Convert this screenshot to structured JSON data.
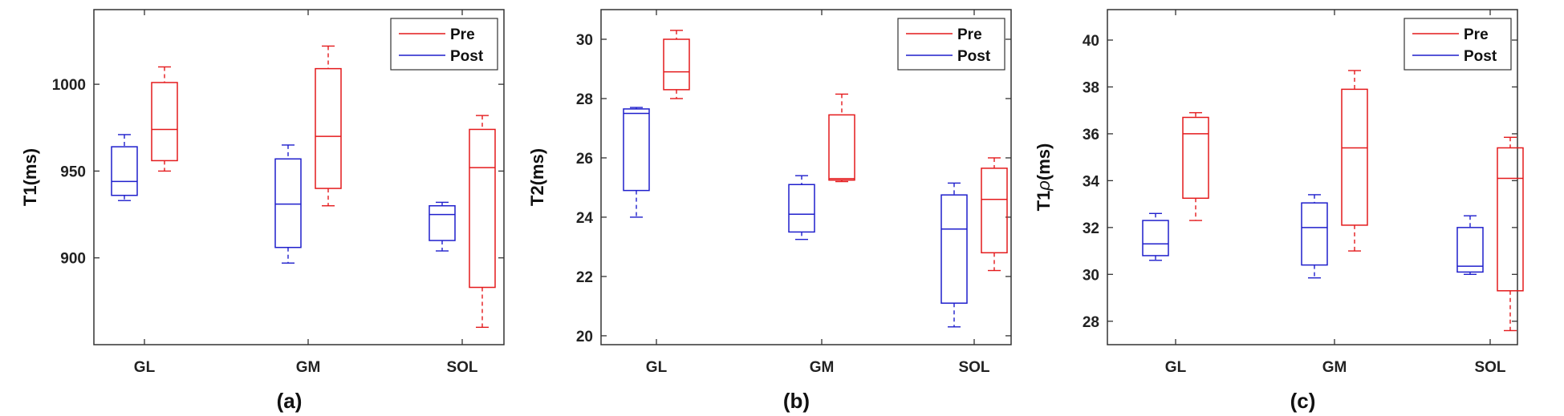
{
  "chart_data": [
    {
      "type": "box",
      "panel_label": "(a)",
      "ylabel": "T1(ms)",
      "categories": [
        "GL",
        "GM",
        "SOL"
      ],
      "ylim": [
        850,
        1043
      ],
      "yticks": [
        900,
        950,
        1000
      ],
      "legend": {
        "position": "top-right",
        "entries": [
          "Pre",
          "Post"
        ]
      },
      "series": [
        {
          "name": "Pre",
          "color": "#e41a1c",
          "boxes": [
            {
              "min": 950,
              "q1": 956,
              "median": 974,
              "q3": 1001,
              "max": 1010
            },
            {
              "min": 930,
              "q1": 940,
              "median": 970,
              "q3": 1009,
              "max": 1022
            },
            {
              "min": 860,
              "q1": 883,
              "median": 952,
              "q3": 974,
              "max": 982
            }
          ]
        },
        {
          "name": "Post",
          "color": "#1f1fcc",
          "boxes": [
            {
              "min": 933,
              "q1": 936,
              "median": 944,
              "q3": 964,
              "max": 971
            },
            {
              "min": 897,
              "q1": 906,
              "median": 931,
              "q3": 957,
              "max": 965
            },
            {
              "min": 904,
              "q1": 910,
              "median": 925,
              "q3": 930,
              "max": 932
            }
          ]
        }
      ]
    },
    {
      "type": "box",
      "panel_label": "(b)",
      "ylabel": "T2(ms)",
      "categories": [
        "GL",
        "GM",
        "SOL"
      ],
      "ylim": [
        19.7,
        31
      ],
      "yticks": [
        20,
        22,
        24,
        26,
        28,
        30
      ],
      "legend": {
        "position": "top-right",
        "entries": [
          "Pre",
          "Post"
        ]
      },
      "series": [
        {
          "name": "Pre",
          "color": "#e41a1c",
          "boxes": [
            {
              "min": 28.0,
              "q1": 28.3,
              "median": 28.9,
              "q3": 30.0,
              "max": 30.3
            },
            {
              "min": 25.2,
              "q1": 25.25,
              "median": 25.3,
              "q3": 27.45,
              "max": 28.15
            },
            {
              "min": 22.2,
              "q1": 22.8,
              "median": 24.6,
              "q3": 25.65,
              "max": 26.0
            }
          ]
        },
        {
          "name": "Post",
          "color": "#1f1fcc",
          "boxes": [
            {
              "min": 24.0,
              "q1": 24.9,
              "median": 27.5,
              "q3": 27.65,
              "max": 27.7
            },
            {
              "min": 23.25,
              "q1": 23.5,
              "median": 24.1,
              "q3": 25.1,
              "max": 25.4
            },
            {
              "min": 20.3,
              "q1": 21.1,
              "median": 23.6,
              "q3": 24.75,
              "max": 25.15
            }
          ]
        }
      ]
    },
    {
      "type": "box",
      "panel_label": "(c)",
      "ylabel": "T1ρ(ms)",
      "ylabel_base": "T1",
      "ylabel_greek": "ρ",
      "ylabel_unit": "(ms)",
      "categories": [
        "GL",
        "GM",
        "SOL"
      ],
      "ylim": [
        27,
        41.3
      ],
      "yticks": [
        28,
        30,
        32,
        34,
        36,
        38,
        40
      ],
      "legend": {
        "position": "top-right",
        "entries": [
          "Pre",
          "Post"
        ]
      },
      "series": [
        {
          "name": "Pre",
          "color": "#e41a1c",
          "boxes": [
            {
              "min": 32.3,
              "q1": 33.25,
              "median": 36.0,
              "q3": 36.7,
              "max": 36.9
            },
            {
              "min": 31.0,
              "q1": 32.1,
              "median": 35.4,
              "q3": 37.9,
              "max": 38.7
            },
            {
              "min": 27.6,
              "q1": 29.3,
              "median": 34.1,
              "q3": 35.4,
              "max": 35.85
            }
          ]
        },
        {
          "name": "Post",
          "color": "#1f1fcc",
          "boxes": [
            {
              "min": 30.6,
              "q1": 30.8,
              "median": 31.3,
              "q3": 32.3,
              "max": 32.6
            },
            {
              "min": 29.85,
              "q1": 30.4,
              "median": 32.0,
              "q3": 33.05,
              "max": 33.4
            },
            {
              "min": 30.0,
              "q1": 30.1,
              "median": 30.35,
              "q3": 32.0,
              "max": 32.5
            }
          ]
        }
      ]
    }
  ]
}
